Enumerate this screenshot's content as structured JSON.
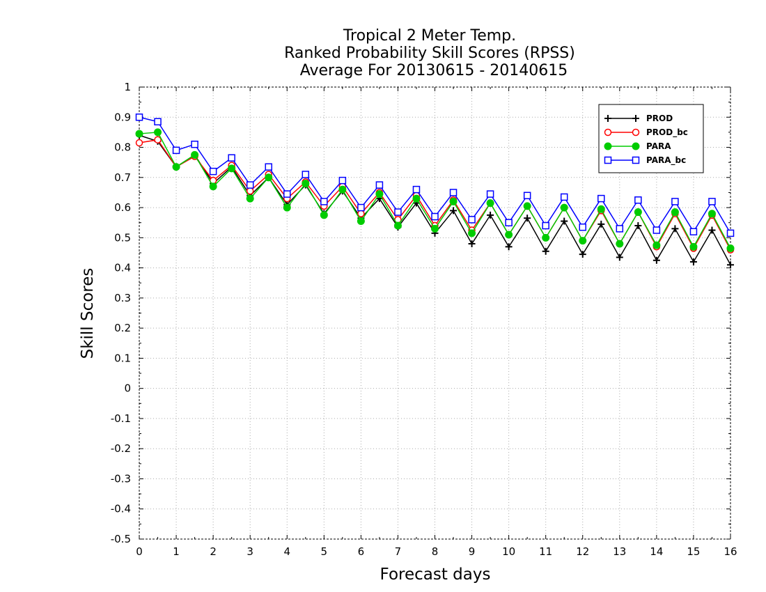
{
  "chart_data": {
    "type": "line",
    "title_lines": [
      "Tropical 2 Meter Temp.",
      "Ranked Probability Skill Scores (RPSS)",
      "Average For 20130615 - 20140615"
    ],
    "xlabel": "Forecast days",
    "ylabel": "Skill Scores",
    "xlim": [
      0,
      16
    ],
    "ylim": [
      -0.5,
      1
    ],
    "x_ticks": [
      "0",
      "1",
      "2",
      "3",
      "4",
      "5",
      "6",
      "7",
      "8",
      "9",
      "10",
      "11",
      "12",
      "13",
      "14",
      "15",
      "16"
    ],
    "y_ticks": [
      "1",
      "0.9",
      "0.8",
      "0.7",
      "0.6",
      "0.5",
      "0.4",
      "0.3",
      "0.2",
      "0.1",
      "0",
      "-0.1",
      "-0.2",
      "-0.3",
      "-0.4",
      "-0.5"
    ],
    "grid": true,
    "legend_position": "top-right",
    "x": [
      0,
      0.5,
      1,
      1.5,
      2,
      2.5,
      3,
      3.5,
      4,
      4.5,
      5,
      5.5,
      6,
      6.5,
      7,
      7.5,
      8,
      8.5,
      9,
      9.5,
      10,
      10.5,
      11,
      11.5,
      12,
      12.5,
      13,
      13.5,
      14,
      14.5,
      15,
      15.5,
      16
    ],
    "series": [
      {
        "name": "PROD",
        "color": "#000000",
        "marker": "plus",
        "values": [
          0.84,
          0.82,
          0.735,
          0.775,
          0.68,
          0.735,
          0.64,
          0.7,
          0.61,
          0.675,
          0.58,
          0.655,
          0.565,
          0.63,
          0.535,
          0.615,
          0.515,
          0.59,
          0.48,
          0.575,
          0.47,
          0.565,
          0.455,
          0.555,
          0.445,
          0.545,
          0.435,
          0.54,
          0.425,
          0.53,
          0.42,
          0.525,
          0.41
        ]
      },
      {
        "name": "PROD_bc",
        "color": "#ff0000",
        "marker": "circle-open",
        "values": [
          0.815,
          0.825,
          0.735,
          0.77,
          0.69,
          0.74,
          0.655,
          0.71,
          0.63,
          0.685,
          0.605,
          0.67,
          0.58,
          0.65,
          0.56,
          0.64,
          0.54,
          0.625,
          0.525,
          0.615,
          0.51,
          0.605,
          0.5,
          0.6,
          0.49,
          0.59,
          0.48,
          0.585,
          0.47,
          0.58,
          0.465,
          0.575,
          0.46
        ]
      },
      {
        "name": "PARA",
        "color": "#00cc00",
        "marker": "circle-filled",
        "values": [
          0.845,
          0.85,
          0.735,
          0.775,
          0.67,
          0.73,
          0.63,
          0.7,
          0.6,
          0.68,
          0.575,
          0.66,
          0.555,
          0.645,
          0.54,
          0.63,
          0.53,
          0.62,
          0.515,
          0.615,
          0.51,
          0.605,
          0.5,
          0.6,
          0.49,
          0.595,
          0.48,
          0.585,
          0.475,
          0.585,
          0.47,
          0.58,
          0.465
        ]
      },
      {
        "name": "PARA_bc",
        "color": "#0000ff",
        "marker": "square-open",
        "values": [
          0.9,
          0.885,
          0.79,
          0.81,
          0.72,
          0.765,
          0.675,
          0.735,
          0.645,
          0.71,
          0.62,
          0.69,
          0.6,
          0.675,
          0.585,
          0.66,
          0.57,
          0.65,
          0.56,
          0.645,
          0.55,
          0.64,
          0.54,
          0.635,
          0.535,
          0.63,
          0.53,
          0.625,
          0.525,
          0.62,
          0.52,
          0.62,
          0.515
        ]
      }
    ]
  }
}
